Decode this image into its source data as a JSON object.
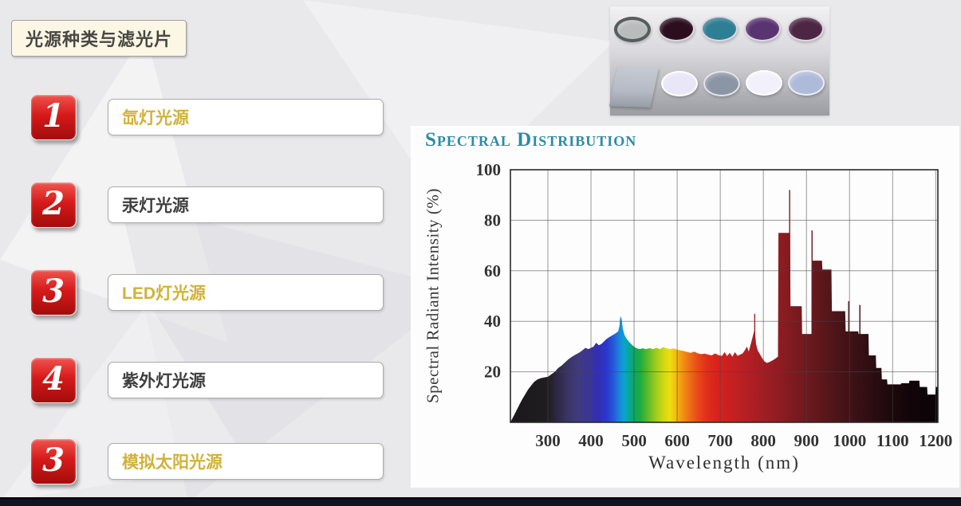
{
  "slide": {
    "title": "光源种类与滤光片",
    "items": [
      {
        "number": "1",
        "label": "氙灯光源",
        "label_color": "#d1b23a"
      },
      {
        "number": "2",
        "label": "汞灯光源",
        "label_color": "#3f3f3f"
      },
      {
        "number": "3",
        "label": "LED灯光源",
        "label_color": "#d1b23a"
      },
      {
        "number": "4",
        "label": "紫外灯光源",
        "label_color": "#3f3f3f"
      },
      {
        "number": "3",
        "label": "模拟太阳光源",
        "label_color": "#d1b23a"
      }
    ],
    "badge_red": "#c81414",
    "bottom_bar_color": "#0e1420"
  },
  "filters_figure": {
    "bg_top": "#f1f1f4",
    "bg_bottom": "#9b9ca2",
    "row1": [
      {
        "name": "silver-nd-filter",
        "fill": "#b8bcbd",
        "rim": "#575c5e"
      },
      {
        "name": "dark-magenta-filter",
        "fill": "#2c0f1f",
        "rim": "#ded8e0"
      },
      {
        "name": "teal-filter",
        "fill": "#2e7e94",
        "rim": "#ded8e0"
      },
      {
        "name": "purple-filter",
        "fill": "#5a3371",
        "rim": "#ded8e0"
      },
      {
        "name": "plum-filter",
        "fill": "#4d2644",
        "rim": "#ded8e0"
      }
    ],
    "row2": [
      {
        "name": "gray-square-plate",
        "fill": "#b6bac4",
        "shape": "square"
      },
      {
        "name": "pale-lavender-filter",
        "fill": "#e8e6f7",
        "rim": "#ffffff"
      },
      {
        "name": "blue-gray-filter",
        "fill": "#8a96a5",
        "rim": "#e8e2ea"
      },
      {
        "name": "white-filter",
        "fill": "#f2f0fa",
        "rim": "#ffffff"
      },
      {
        "name": "light-blue-filter",
        "fill": "#adbad9",
        "rim": "#f0ecf4"
      }
    ]
  },
  "chart_data": {
    "type": "area",
    "title": "Spectral Distribution",
    "xlabel": "Wavelength (nm)",
    "ylabel": "Spectral Radiant Intensity (%)",
    "title_color": "#2b8ca6",
    "xlim": [
      213,
      1205
    ],
    "ylim": [
      0,
      100
    ],
    "x_ticks": [
      300,
      400,
      500,
      600,
      700,
      800,
      900,
      1000,
      1100,
      1200
    ],
    "y_ticks": [
      100,
      80,
      60,
      40,
      20
    ],
    "grid": true,
    "series": [
      [
        213,
        0
      ],
      [
        216,
        1
      ],
      [
        222,
        3
      ],
      [
        228,
        5
      ],
      [
        234,
        7
      ],
      [
        240,
        9
      ],
      [
        247,
        11
      ],
      [
        254,
        13
      ],
      [
        261,
        14.5
      ],
      [
        268,
        16
      ],
      [
        276,
        17
      ],
      [
        284,
        17.5
      ],
      [
        292,
        17.8
      ],
      [
        300,
        18
      ],
      [
        308,
        19
      ],
      [
        316,
        20
      ],
      [
        324,
        21.5
      ],
      [
        332,
        22.5
      ],
      [
        340,
        23.8
      ],
      [
        348,
        25
      ],
      [
        356,
        26
      ],
      [
        364,
        26.8
      ],
      [
        372,
        27.5
      ],
      [
        380,
        28.5
      ],
      [
        387,
        29.5
      ],
      [
        394,
        29
      ],
      [
        400,
        29.5
      ],
      [
        406,
        30
      ],
      [
        412,
        31.5
      ],
      [
        418,
        30.5
      ],
      [
        424,
        31
      ],
      [
        430,
        32
      ],
      [
        436,
        33
      ],
      [
        443,
        33.8
      ],
      [
        450,
        34.5
      ],
      [
        457,
        35.2
      ],
      [
        463,
        36
      ],
      [
        466,
        38
      ],
      [
        468,
        42
      ],
      [
        471,
        41
      ],
      [
        474,
        37
      ],
      [
        478,
        34.5
      ],
      [
        483,
        33
      ],
      [
        489,
        31.8
      ],
      [
        496,
        30.5
      ],
      [
        504,
        29.5
      ],
      [
        512,
        29
      ],
      [
        520,
        29.3
      ],
      [
        528,
        29
      ],
      [
        536,
        29.4
      ],
      [
        544,
        29
      ],
      [
        552,
        29.5
      ],
      [
        560,
        29
      ],
      [
        568,
        29.8
      ],
      [
        576,
        29.2
      ],
      [
        584,
        29
      ],
      [
        592,
        29.3
      ],
      [
        600,
        28.8
      ],
      [
        608,
        28.5
      ],
      [
        616,
        28.2
      ],
      [
        624,
        27.8
      ],
      [
        632,
        27.5
      ],
      [
        640,
        28
      ],
      [
        648,
        27.3
      ],
      [
        656,
        27
      ],
      [
        664,
        27.2
      ],
      [
        672,
        26.8
      ],
      [
        680,
        26.5
      ],
      [
        688,
        27.3
      ],
      [
        696,
        26.6
      ],
      [
        704,
        26.3
      ],
      [
        710,
        27.8
      ],
      [
        716,
        26.2
      ],
      [
        722,
        27.5
      ],
      [
        728,
        26
      ],
      [
        734,
        27.8
      ],
      [
        740,
        26.3
      ],
      [
        746,
        26.8
      ],
      [
        752,
        27.3
      ],
      [
        758,
        28.8
      ],
      [
        762,
        30
      ],
      [
        766,
        28
      ],
      [
        770,
        30.5
      ],
      [
        774,
        33
      ],
      [
        777,
        35
      ],
      [
        780,
        37
      ],
      [
        783,
        31
      ],
      [
        787,
        28.5
      ],
      [
        792,
        27
      ],
      [
        797,
        25.5
      ],
      [
        802,
        24.2
      ],
      [
        808,
        23.5
      ],
      [
        816,
        24
      ],
      [
        826,
        25
      ],
      [
        834,
        26
      ],
      [
        835,
        75
      ],
      [
        862,
        75
      ],
      [
        863,
        46
      ],
      [
        889,
        46
      ],
      [
        890,
        35
      ],
      [
        913,
        35
      ],
      [
        914,
        64
      ],
      [
        936,
        64
      ],
      [
        937,
        60.5
      ],
      [
        958,
        60.5
      ],
      [
        959,
        44
      ],
      [
        990,
        44
      ],
      [
        991,
        36
      ],
      [
        1020,
        36
      ],
      [
        1021,
        35
      ],
      [
        1044,
        35
      ],
      [
        1045,
        26.5
      ],
      [
        1061,
        26.5
      ],
      [
        1062,
        21.5
      ],
      [
        1074,
        21.5
      ],
      [
        1075,
        17
      ],
      [
        1087,
        17
      ],
      [
        1088,
        15
      ],
      [
        1119,
        15
      ],
      [
        1120,
        15.5
      ],
      [
        1138,
        15.5
      ],
      [
        1139,
        16.5
      ],
      [
        1162,
        16.5
      ],
      [
        1163,
        14
      ],
      [
        1180,
        14
      ],
      [
        1181,
        11
      ],
      [
        1199,
        11
      ],
      [
        1200,
        14
      ],
      [
        1205,
        14
      ]
    ],
    "spike_lines": [
      [
        780,
        43
      ],
      [
        861,
        92
      ],
      [
        913,
        76
      ],
      [
        998,
        48
      ],
      [
        1024,
        46.5
      ]
    ],
    "spectrum_stops": [
      [
        213,
        "#1b181a"
      ],
      [
        300,
        "#201d22"
      ],
      [
        320,
        "#2c2743"
      ],
      [
        345,
        "#3a3463"
      ],
      [
        370,
        "#413a7d"
      ],
      [
        395,
        "#3b3598"
      ],
      [
        415,
        "#322fb2"
      ],
      [
        435,
        "#2b35cc"
      ],
      [
        452,
        "#2458d8"
      ],
      [
        465,
        "#1b83dc"
      ],
      [
        476,
        "#0aa3cf"
      ],
      [
        488,
        "#07a79a"
      ],
      [
        500,
        "#0ba75f"
      ],
      [
        515,
        "#1ead3d"
      ],
      [
        532,
        "#5dbb2a"
      ],
      [
        550,
        "#9ccb1e"
      ],
      [
        568,
        "#cfd713"
      ],
      [
        583,
        "#eedd10"
      ],
      [
        595,
        "#f4c20f"
      ],
      [
        607,
        "#f3a013"
      ],
      [
        620,
        "#ef8115"
      ],
      [
        635,
        "#ec6217"
      ],
      [
        650,
        "#e74719"
      ],
      [
        668,
        "#e0301a"
      ],
      [
        688,
        "#d8241c"
      ],
      [
        710,
        "#cd211f"
      ],
      [
        735,
        "#c12022"
      ],
      [
        765,
        "#b21f23"
      ],
      [
        800,
        "#a01e23"
      ],
      [
        840,
        "#8d1c21"
      ],
      [
        880,
        "#771a1f"
      ],
      [
        920,
        "#64181d"
      ],
      [
        960,
        "#511519"
      ],
      [
        1000,
        "#401216"
      ],
      [
        1045,
        "#2f0e12"
      ],
      [
        1090,
        "#1f090d"
      ],
      [
        1140,
        "#120509"
      ],
      [
        1205,
        "#0a0406"
      ]
    ],
    "grid_color": "rgba(70,70,70,0.55)",
    "axis_color": "#2a2a2a"
  }
}
